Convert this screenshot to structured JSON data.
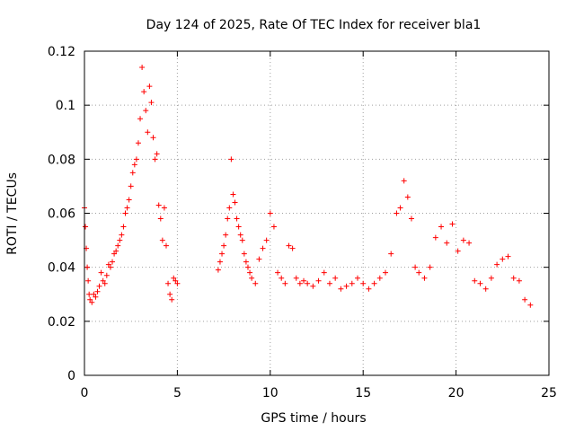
{
  "chart_data": {
    "type": "scatter",
    "title": "Day 124 of 2025, Rate Of TEC Index for receiver bla1",
    "xlabel": "GPS time / hours",
    "ylabel": "ROTI / TECUs",
    "xlim": [
      0,
      25
    ],
    "ylim": [
      0,
      0.12
    ],
    "x_ticks": [
      "0",
      "5",
      "10",
      "15",
      "20",
      "25"
    ],
    "y_ticks": [
      "0",
      "0.02",
      "0.04",
      "0.06",
      "0.08",
      "0.1",
      "0.12"
    ],
    "grid": true,
    "marker": "plus",
    "color": "#ff0000",
    "series": [
      {
        "x": [
          0.0,
          0.05,
          0.1,
          0.15,
          0.2,
          0.25,
          0.3,
          0.4,
          0.5,
          0.6,
          0.7,
          0.8,
          0.9,
          1.0,
          1.1,
          1.2,
          1.3,
          1.4,
          1.5,
          1.6,
          1.7,
          1.8,
          1.9,
          2.0,
          2.1,
          2.2,
          2.3,
          2.4,
          2.5,
          2.6,
          2.7,
          2.8,
          2.9,
          3.0,
          3.1,
          3.2,
          3.3,
          3.4,
          3.5,
          3.6,
          3.7,
          3.8,
          3.9,
          4.0,
          4.1,
          4.2,
          4.3,
          4.4,
          4.5,
          4.6,
          4.7,
          4.8,
          4.9,
          5.0,
          7.2,
          7.3,
          7.4,
          7.5,
          7.6,
          7.7,
          7.8,
          7.9,
          8.0,
          8.1,
          8.2,
          8.3,
          8.4,
          8.5,
          8.6,
          8.7,
          8.8,
          8.9,
          9.0,
          9.2,
          9.4,
          9.6,
          9.8,
          10.0,
          10.2,
          10.4,
          10.6,
          10.8,
          11.0,
          11.2,
          11.4,
          11.6,
          11.8,
          12.0,
          12.3,
          12.6,
          12.9,
          13.2,
          13.5,
          13.8,
          14.1,
          14.4,
          14.7,
          15.0,
          15.3,
          15.6,
          15.9,
          16.2,
          16.5,
          16.8,
          17.0,
          17.2,
          17.4,
          17.6,
          17.8,
          18.0,
          18.3,
          18.6,
          18.9,
          19.2,
          19.5,
          19.8,
          20.1,
          20.4,
          20.7,
          21.0,
          21.3,
          21.6,
          21.9,
          22.2,
          22.5,
          22.8,
          23.1,
          23.4,
          23.7,
          24.0
        ],
        "y": [
          0.062,
          0.055,
          0.047,
          0.04,
          0.035,
          0.03,
          0.028,
          0.027,
          0.03,
          0.029,
          0.031,
          0.033,
          0.038,
          0.035,
          0.034,
          0.037,
          0.041,
          0.04,
          0.042,
          0.045,
          0.046,
          0.048,
          0.05,
          0.052,
          0.055,
          0.06,
          0.062,
          0.065,
          0.07,
          0.075,
          0.078,
          0.08,
          0.086,
          0.095,
          0.114,
          0.105,
          0.098,
          0.09,
          0.107,
          0.101,
          0.088,
          0.08,
          0.082,
          0.063,
          0.058,
          0.05,
          0.062,
          0.048,
          0.034,
          0.03,
          0.028,
          0.036,
          0.035,
          0.034,
          0.039,
          0.042,
          0.045,
          0.048,
          0.052,
          0.058,
          0.062,
          0.08,
          0.067,
          0.064,
          0.058,
          0.055,
          0.052,
          0.05,
          0.045,
          0.042,
          0.04,
          0.038,
          0.036,
          0.034,
          0.043,
          0.047,
          0.05,
          0.06,
          0.055,
          0.038,
          0.036,
          0.034,
          0.048,
          0.047,
          0.036,
          0.034,
          0.035,
          0.034,
          0.033,
          0.035,
          0.038,
          0.034,
          0.036,
          0.032,
          0.033,
          0.034,
          0.036,
          0.034,
          0.032,
          0.034,
          0.036,
          0.038,
          0.045,
          0.06,
          0.062,
          0.072,
          0.066,
          0.058,
          0.04,
          0.038,
          0.036,
          0.04,
          0.051,
          0.055,
          0.049,
          0.056,
          0.046,
          0.05,
          0.049,
          0.035,
          0.034,
          0.032,
          0.036,
          0.041,
          0.043,
          0.044,
          0.036,
          0.035,
          0.028,
          0.026
        ]
      }
    ]
  }
}
